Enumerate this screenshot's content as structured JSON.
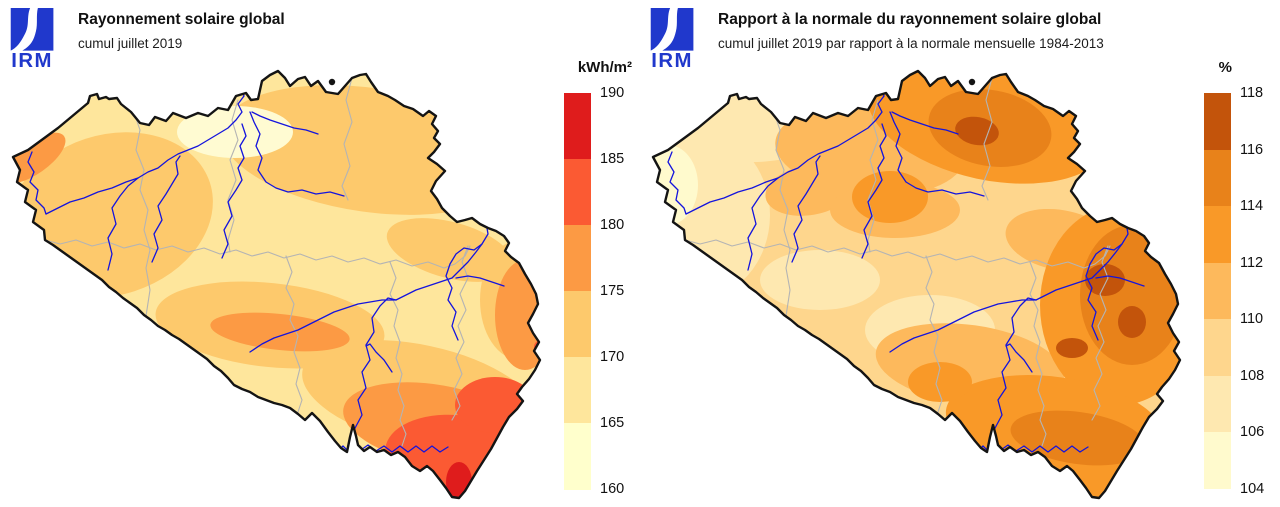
{
  "panels": [
    {
      "logo_text": "IRM",
      "logo_color": "#2038cc",
      "title": "Rayonnement solaire global",
      "subtitle": "cumul juillet 2019",
      "legend": {
        "unit": "kWh/m²",
        "ticks": [
          "190",
          "185",
          "180",
          "175",
          "170",
          "165",
          "160"
        ],
        "bands": [
          {
            "range": "185-190",
            "color": "#df1c1c"
          },
          {
            "range": "180-185",
            "color": "#fb5a33"
          },
          {
            "range": "175-180",
            "color": "#fc9a44"
          },
          {
            "range": "170-175",
            "color": "#fdc96c"
          },
          {
            "range": "165-170",
            "color": "#fee69c"
          },
          {
            "range": "160-165",
            "color": "#ffffcc"
          }
        ]
      }
    },
    {
      "logo_text": "IRM",
      "logo_color": "#2038cc",
      "title": "Rapport à la normale du rayonnement solaire global",
      "subtitle": "cumul juillet 2019 par rapport à la normale mensuelle 1984-2013",
      "legend": {
        "unit": "%",
        "ticks": [
          "118",
          "116",
          "114",
          "112",
          "110",
          "108",
          "106",
          "104"
        ],
        "bands": [
          {
            "range": "116-118",
            "color": "#c3540b"
          },
          {
            "range": "114-116",
            "color": "#e8821a"
          },
          {
            "range": "112-114",
            "color": "#f99928"
          },
          {
            "range": "110-112",
            "color": "#fdb95c"
          },
          {
            "range": "108-110",
            "color": "#fed68d"
          },
          {
            "range": "106-108",
            "color": "#fee8b0"
          },
          {
            "range": "104-106",
            "color": "#fffacd"
          }
        ]
      }
    }
  ],
  "chart_data": [
    {
      "type": "choropleth-map",
      "region": "Belgique",
      "title": "Rayonnement solaire global",
      "subtitle": "cumul juillet 2019",
      "unit": "kWh/m²",
      "scale_ticks": [
        190,
        185,
        180,
        175,
        170,
        165,
        160
      ],
      "bands": [
        {
          "from": 185,
          "to": 190,
          "color": "#df1c1c"
        },
        {
          "from": 180,
          "to": 185,
          "color": "#fb5a33"
        },
        {
          "from": 175,
          "to": 180,
          "color": "#fc9a44"
        },
        {
          "from": 170,
          "to": 175,
          "color": "#fdc96c"
        },
        {
          "from": 165,
          "to": 170,
          "color": "#fee69c"
        },
        {
          "from": 160,
          "to": 165,
          "color": "#ffffcc"
        }
      ],
      "spatial_pattern": "160-175 sur le nord et le centre, 175-180 sur la côte NW et le sud-est, 180-185 sur le sud des Ardennes, 185-190 à l'extrême sud (Gaume)"
    },
    {
      "type": "choropleth-map",
      "region": "Belgique",
      "title": "Rapport à la normale du rayonnement solaire global",
      "subtitle": "cumul juillet 2019 par rapport à la normale mensuelle 1984-2013",
      "unit": "%",
      "scale_ticks": [
        118,
        116,
        114,
        112,
        110,
        108,
        106,
        104
      ],
      "bands": [
        {
          "from": 116,
          "to": 118,
          "color": "#c3540b"
        },
        {
          "from": 114,
          "to": 116,
          "color": "#e8821a"
        },
        {
          "from": 112,
          "to": 114,
          "color": "#f99928"
        },
        {
          "from": 110,
          "to": 112,
          "color": "#fdb95c"
        },
        {
          "from": 108,
          "to": 110,
          "color": "#fed68d"
        },
        {
          "from": 106,
          "to": 108,
          "color": "#fee8b0"
        },
        {
          "from": 104,
          "to": 106,
          "color": "#fffacd"
        }
      ],
      "spatial_pattern": "104-108 à l'ouest, 108-112 au centre, 112-116 au nord-est et au sud, maxima 116-118 en Campine et dans l'est du pays"
    }
  ]
}
